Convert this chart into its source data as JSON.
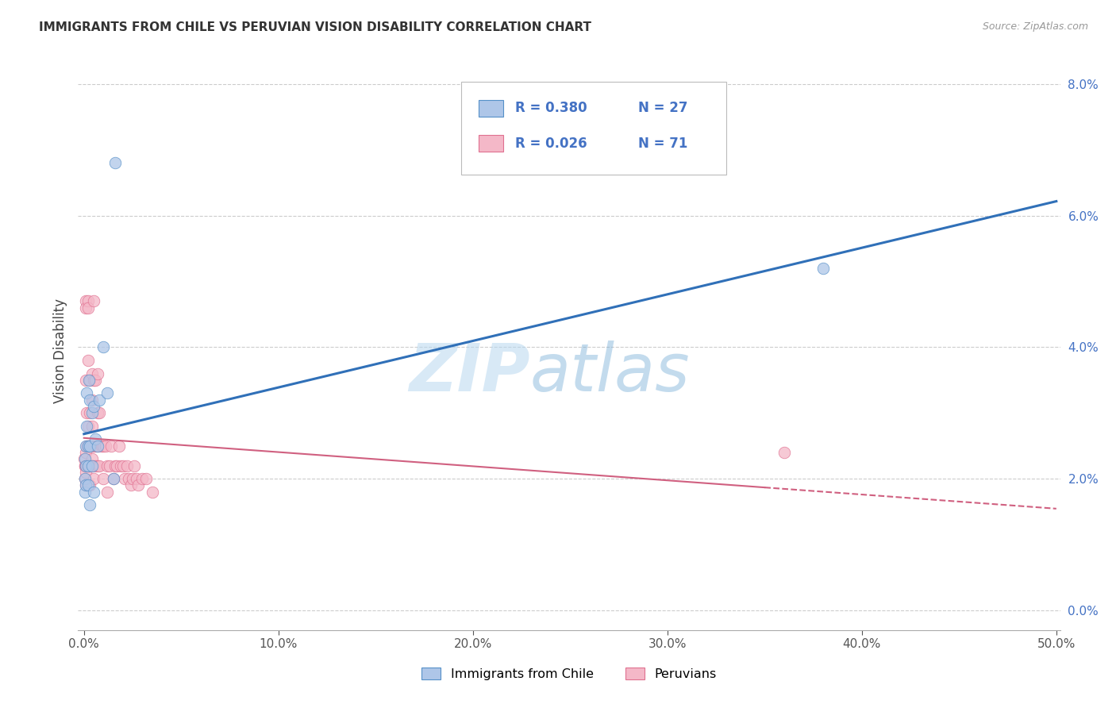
{
  "title": "IMMIGRANTS FROM CHILE VS PERUVIAN VISION DISABILITY CORRELATION CHART",
  "source": "Source: ZipAtlas.com",
  "ylabel": "Vision Disability",
  "xlim_min": -0.003,
  "xlim_max": 0.502,
  "ylim_min": -0.003,
  "ylim_max": 0.082,
  "xticks": [
    0.0,
    0.1,
    0.2,
    0.3,
    0.4,
    0.5
  ],
  "yticks": [
    0.0,
    0.02,
    0.04,
    0.06,
    0.08
  ],
  "xticklabels": [
    "0.0%",
    "10.0%",
    "20.0%",
    "30.0%",
    "40.0%",
    "50.0%"
  ],
  "yticklabels": [
    "0.0%",
    "2.0%",
    "4.0%",
    "6.0%",
    "8.0%"
  ],
  "legend_r1": "R = 0.380",
  "legend_n1": "N = 27",
  "legend_r2": "R = 0.026",
  "legend_n2": "N = 71",
  "legend_label1": "Immigrants from Chile",
  "legend_label2": "Peruvians",
  "color_blue_fill": "#aec6e8",
  "color_blue_edge": "#5590c8",
  "color_pink_fill": "#f4b8c8",
  "color_pink_edge": "#e07090",
  "color_blue_line": "#3070b8",
  "color_pink_line": "#d06080",
  "watermark_zip": "ZIP",
  "watermark_atlas": "atlas",
  "chile_x": [
    0.0003,
    0.0005,
    0.0007,
    0.001,
    0.001,
    0.001,
    0.0012,
    0.0015,
    0.002,
    0.002,
    0.002,
    0.0025,
    0.003,
    0.003,
    0.003,
    0.004,
    0.004,
    0.005,
    0.005,
    0.006,
    0.007,
    0.008,
    0.01,
    0.012,
    0.015,
    0.016,
    0.38
  ],
  "chile_y": [
    0.023,
    0.02,
    0.018,
    0.025,
    0.022,
    0.019,
    0.028,
    0.033,
    0.025,
    0.022,
    0.019,
    0.035,
    0.032,
    0.025,
    0.016,
    0.03,
    0.022,
    0.031,
    0.018,
    0.026,
    0.025,
    0.032,
    0.04,
    0.033,
    0.02,
    0.068,
    0.052
  ],
  "peru_x": [
    0.0002,
    0.0003,
    0.0005,
    0.0007,
    0.001,
    0.001,
    0.001,
    0.001,
    0.001,
    0.001,
    0.001,
    0.0012,
    0.0015,
    0.0015,
    0.002,
    0.002,
    0.002,
    0.002,
    0.002,
    0.0022,
    0.0025,
    0.003,
    0.003,
    0.003,
    0.003,
    0.003,
    0.004,
    0.004,
    0.004,
    0.004,
    0.004,
    0.004,
    0.005,
    0.005,
    0.005,
    0.005,
    0.006,
    0.006,
    0.006,
    0.007,
    0.007,
    0.007,
    0.007,
    0.008,
    0.008,
    0.009,
    0.01,
    0.01,
    0.011,
    0.012,
    0.012,
    0.013,
    0.014,
    0.015,
    0.016,
    0.017,
    0.018,
    0.019,
    0.02,
    0.021,
    0.022,
    0.023,
    0.024,
    0.025,
    0.026,
    0.027,
    0.028,
    0.03,
    0.032,
    0.035,
    0.36
  ],
  "peru_y": [
    0.023,
    0.022,
    0.02,
    0.022,
    0.047,
    0.046,
    0.035,
    0.024,
    0.022,
    0.021,
    0.019,
    0.025,
    0.03,
    0.022,
    0.047,
    0.046,
    0.028,
    0.025,
    0.022,
    0.038,
    0.025,
    0.035,
    0.03,
    0.025,
    0.022,
    0.019,
    0.036,
    0.032,
    0.028,
    0.025,
    0.023,
    0.022,
    0.047,
    0.035,
    0.025,
    0.02,
    0.035,
    0.025,
    0.022,
    0.036,
    0.03,
    0.025,
    0.022,
    0.03,
    0.022,
    0.025,
    0.025,
    0.02,
    0.025,
    0.022,
    0.018,
    0.022,
    0.025,
    0.02,
    0.022,
    0.022,
    0.025,
    0.022,
    0.022,
    0.02,
    0.022,
    0.02,
    0.019,
    0.02,
    0.022,
    0.02,
    0.019,
    0.02,
    0.02,
    0.018,
    0.024
  ]
}
